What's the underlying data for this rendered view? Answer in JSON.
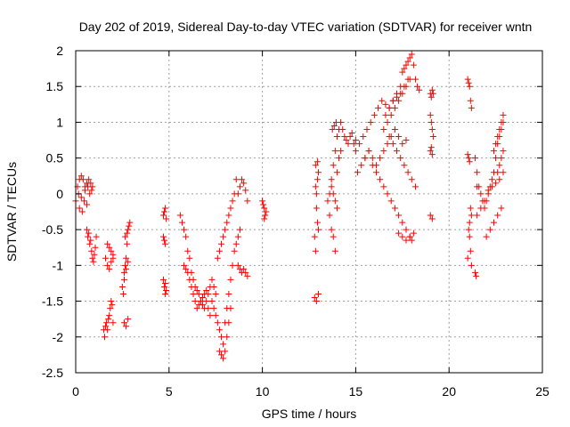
{
  "chart_data": {
    "type": "scatter",
    "title": "Day 202 of 2019, Sidereal Day-to-day VTEC variation (SDTVAR) for receiver wntn",
    "xlabel": "GPS time / hours",
    "ylabel": "SDTVAR / TECUs",
    "xlim": [
      0,
      25
    ],
    "ylim": [
      -2.5,
      2
    ],
    "xticks": [
      0,
      5,
      10,
      15,
      20,
      25
    ],
    "yticks": [
      -2.5,
      -2,
      -1.5,
      -1,
      -0.5,
      0,
      0.5,
      1,
      1.5,
      2
    ],
    "xtick_labels": [
      "0",
      "5",
      "10",
      "15",
      "20",
      "25"
    ],
    "ytick_labels": [
      "-2.5",
      "-2",
      "-1.5",
      "-1",
      "-0.5",
      "0",
      "0.5",
      "1",
      "1.5",
      "2"
    ],
    "grid": true,
    "marker": "+",
    "color": "#ff0000",
    "series": [
      {
        "name": "SDTVAR",
        "x": [
          0.0,
          0.1,
          0.2,
          0.3,
          0.4,
          0.5,
          0.6,
          0.7,
          0.8,
          0.9,
          0.15,
          0.3,
          0.45,
          0.6,
          0.75,
          0.85,
          0.2,
          0.35,
          0.5,
          0.65,
          0.6,
          0.65,
          0.7,
          0.75,
          0.8,
          0.85,
          0.9,
          0.95,
          1.0,
          1.05,
          1.1,
          1.5,
          1.55,
          1.6,
          1.65,
          1.7,
          1.75,
          1.8,
          1.85,
          1.9,
          1.95,
          2.0,
          1.6,
          1.7,
          1.8,
          1.9,
          2.0,
          1.7,
          1.8,
          1.9,
          2.0,
          2.5,
          2.55,
          2.6,
          2.65,
          2.7,
          2.75,
          2.8,
          2.85,
          2.9,
          2.6,
          2.7,
          2.8,
          2.65,
          2.75,
          2.6,
          2.7,
          2.8,
          4.7,
          4.75,
          4.8,
          4.85,
          4.7,
          4.75,
          4.8,
          4.7,
          4.75,
          4.8,
          4.85,
          4.8,
          5.6,
          5.7,
          5.8,
          5.9,
          6.0,
          6.1,
          6.2,
          6.3,
          6.4,
          6.5,
          6.6,
          6.7,
          6.8,
          6.9,
          7.0,
          7.1,
          7.2,
          7.3,
          7.4,
          7.5,
          5.8,
          5.9,
          6.0,
          6.1,
          6.2,
          6.3,
          6.4,
          6.5,
          6.6,
          6.7,
          6.8,
          6.9,
          7.0,
          7.1,
          7.2,
          7.3,
          7.4,
          7.5,
          7.6,
          7.7,
          7.8,
          7.9,
          8.0,
          8.1,
          8.2,
          8.3,
          8.4,
          8.5,
          8.6,
          8.7,
          8.8,
          7.6,
          7.7,
          7.8,
          7.9,
          8.0,
          8.1,
          8.2,
          8.3,
          8.4,
          8.5,
          8.6,
          7.7,
          7.8,
          7.9,
          8.0,
          8.1,
          8.2,
          8.3,
          8.7,
          8.8,
          8.9,
          9.0,
          9.1,
          9.2,
          8.7,
          8.8,
          8.9,
          9.0,
          9.1,
          9.2,
          10.0,
          10.05,
          10.1,
          10.15,
          10.2,
          10.1,
          12.8,
          12.85,
          12.9,
          12.95,
          13.0,
          12.85,
          12.9,
          12.95,
          13.0,
          12.8,
          12.9,
          13.0,
          12.85,
          12.95,
          13.5,
          13.6,
          13.7,
          13.8,
          13.9,
          14.0,
          14.1,
          14.2,
          14.3,
          14.4,
          14.5,
          14.6,
          14.7,
          14.8,
          14.9,
          15.0,
          13.6,
          13.7,
          13.8,
          13.9,
          14.0,
          14.1,
          14.2,
          13.7,
          13.8,
          13.9,
          14.0,
          13.75,
          13.85,
          13.95,
          15.0,
          15.2,
          15.4,
          15.6,
          15.8,
          16.0,
          16.2,
          16.4,
          16.6,
          16.8,
          17.0,
          17.2,
          17.4,
          17.6,
          17.8,
          15.1,
          15.3,
          15.5,
          15.7,
          15.9,
          16.1,
          16.3,
          16.5,
          16.7,
          16.9,
          17.1,
          17.3,
          17.5,
          17.7,
          15.5,
          15.7,
          15.9,
          16.1,
          16.3,
          16.5,
          16.7,
          16.9,
          17.1,
          17.3,
          17.5,
          17.7,
          17.9,
          18.0,
          16.5,
          16.7,
          16.9,
          17.1,
          17.3,
          17.5,
          17.7,
          17.9,
          16.6,
          16.8,
          17.0,
          17.2,
          17.4,
          16.8,
          17.0,
          17.2,
          17.4,
          17.6,
          17.8,
          18.0,
          18.2,
          17.3,
          17.5,
          17.7,
          17.9,
          18.1,
          17.5,
          17.6,
          17.7,
          17.8,
          17.9,
          18.0,
          18.1,
          18.2,
          18.3,
          18.4,
          19.0,
          19.05,
          19.1,
          19.15,
          19.0,
          19.05,
          19.1,
          19.15,
          19.0,
          19.1,
          19.0,
          19.05,
          19.1,
          21.0,
          21.05,
          21.1,
          21.15,
          21.2,
          21.0,
          21.05,
          21.1,
          21.15,
          21.2,
          21.05,
          21.1,
          21.15,
          21.0,
          21.1,
          21.2,
          21.4,
          21.5,
          21.6,
          21.7,
          21.8,
          21.9,
          22.0,
          22.1,
          22.2,
          22.3,
          22.4,
          22.5,
          22.6,
          22.7,
          22.8,
          22.9,
          21.5,
          21.7,
          21.9,
          22.1,
          22.3,
          22.5,
          22.7,
          22.9,
          22.0,
          22.2,
          22.4,
          22.6,
          22.8,
          21.4,
          21.45,
          21.5,
          22.4,
          22.5,
          22.6,
          22.7,
          22.8,
          22.9,
          22.6,
          22.7,
          22.8,
          22.9
        ],
        "y": [
          -0.1,
          0.1,
          0.2,
          0.25,
          0.2,
          0.1,
          0.15,
          0.2,
          0.15,
          0.1,
          0.0,
          -0.05,
          -0.1,
          -0.15,
          0.0,
          0.05,
          -0.2,
          -0.25,
          0.05,
          0.1,
          -0.5,
          -0.6,
          -0.55,
          -0.7,
          -0.65,
          -0.8,
          -0.9,
          -0.95,
          -0.85,
          -0.75,
          -0.6,
          -1.9,
          -2.0,
          -1.85,
          -1.8,
          -1.9,
          -1.75,
          -1.7,
          -1.6,
          -1.5,
          -1.55,
          -1.8,
          -0.9,
          -1.0,
          -1.05,
          -0.95,
          -0.9,
          -0.7,
          -0.75,
          -0.8,
          -0.85,
          -1.3,
          -1.4,
          -1.2,
          -1.0,
          -0.9,
          -0.7,
          -0.5,
          -0.45,
          -0.4,
          -1.8,
          -1.85,
          -1.75,
          -0.6,
          -0.55,
          -1.1,
          -1.05,
          -0.95,
          -0.3,
          -0.25,
          -0.2,
          -0.35,
          -0.6,
          -0.65,
          -0.7,
          -1.2,
          -1.3,
          -1.4,
          -1.35,
          -1.25,
          -0.3,
          -0.4,
          -0.5,
          -0.6,
          -0.8,
          -0.9,
          -1.1,
          -1.2,
          -1.3,
          -1.35,
          -1.4,
          -1.5,
          -1.55,
          -1.6,
          -1.5,
          -1.4,
          -1.3,
          -1.2,
          -1.3,
          -1.4,
          -1.0,
          -1.05,
          -1.1,
          -1.2,
          -1.3,
          -1.4,
          -1.5,
          -1.6,
          -1.55,
          -1.5,
          -1.45,
          -1.4,
          -1.35,
          -1.6,
          -1.7,
          -1.5,
          -1.6,
          -1.7,
          -1.8,
          -1.9,
          -2.0,
          -2.1,
          -1.8,
          -1.6,
          -1.4,
          -1.2,
          -1.0,
          -0.8,
          -0.7,
          -0.6,
          -0.5,
          -0.9,
          -0.8,
          -0.7,
          -0.6,
          -0.5,
          -0.4,
          -0.3,
          -0.2,
          -0.1,
          0.0,
          0.2,
          -2.2,
          -2.25,
          -2.3,
          -2.2,
          -2.0,
          -1.8,
          -1.6,
          0.0,
          0.1,
          0.2,
          0.15,
          0.05,
          -0.1,
          -1.0,
          -1.05,
          -1.1,
          -1.05,
          -1.1,
          -1.15,
          -0.1,
          -0.15,
          -0.2,
          -0.3,
          -0.25,
          -0.35,
          -0.6,
          -0.8,
          0.0,
          0.2,
          0.3,
          0.1,
          -0.2,
          -0.4,
          -0.5,
          -1.45,
          -1.5,
          -1.4,
          0.4,
          0.45,
          -0.1,
          0.0,
          0.2,
          0.4,
          0.6,
          0.8,
          0.9,
          1.0,
          0.9,
          0.8,
          0.75,
          0.7,
          0.8,
          0.85,
          0.7,
          0.75,
          -0.3,
          -0.5,
          -0.6,
          -0.8,
          0.3,
          0.5,
          0.6,
          0.1,
          0.0,
          -0.1,
          -0.2,
          0.9,
          0.95,
          1.0,
          0.6,
          0.7,
          0.8,
          0.9,
          1.0,
          1.1,
          1.2,
          1.3,
          1.25,
          1.2,
          1.3,
          1.35,
          1.4,
          1.5,
          1.6,
          0.3,
          0.4,
          0.5,
          0.6,
          0.5,
          0.4,
          0.5,
          0.6,
          0.7,
          0.8,
          0.9,
          0.8,
          0.7,
          0.75,
          0.5,
          0.6,
          0.4,
          0.3,
          0.2,
          0.1,
          0.0,
          -0.1,
          -0.2,
          -0.3,
          -0.4,
          -0.5,
          -0.6,
          -0.65,
          0.9,
          1.0,
          1.1,
          1.2,
          1.3,
          1.4,
          1.5,
          1.6,
          1.1,
          1.2,
          1.3,
          1.4,
          1.5,
          0.8,
          0.7,
          0.6,
          0.5,
          0.4,
          0.3,
          0.2,
          0.1,
          -0.55,
          -0.6,
          -0.65,
          -0.6,
          -0.55,
          1.7,
          1.75,
          1.8,
          1.85,
          1.9,
          1.95,
          1.8,
          1.6,
          1.5,
          1.45,
          1.4,
          1.35,
          1.45,
          1.4,
          1.1,
          1.0,
          0.9,
          0.8,
          -0.3,
          -0.35,
          0.6,
          0.65,
          0.55,
          1.6,
          1.55,
          1.5,
          1.3,
          1.2,
          0.55,
          0.5,
          0.45,
          -0.2,
          -0.3,
          -0.5,
          -0.6,
          -0.8,
          -0.9,
          -0.4,
          -1.0,
          0.5,
          0.3,
          0.1,
          0.0,
          -0.1,
          -0.2,
          -0.1,
          0.0,
          0.1,
          0.2,
          0.3,
          0.5,
          0.7,
          0.8,
          0.9,
          1.0,
          -0.3,
          -0.2,
          -0.1,
          0.05,
          0.1,
          0.15,
          0.2,
          0.3,
          -0.6,
          -0.5,
          -0.4,
          -0.3,
          -0.2,
          -1.1,
          -1.15,
          0.1,
          0.6,
          0.7,
          0.8,
          0.9,
          1.0,
          1.1,
          0.3,
          0.4,
          0.5,
          0.6
        ]
      }
    ]
  }
}
